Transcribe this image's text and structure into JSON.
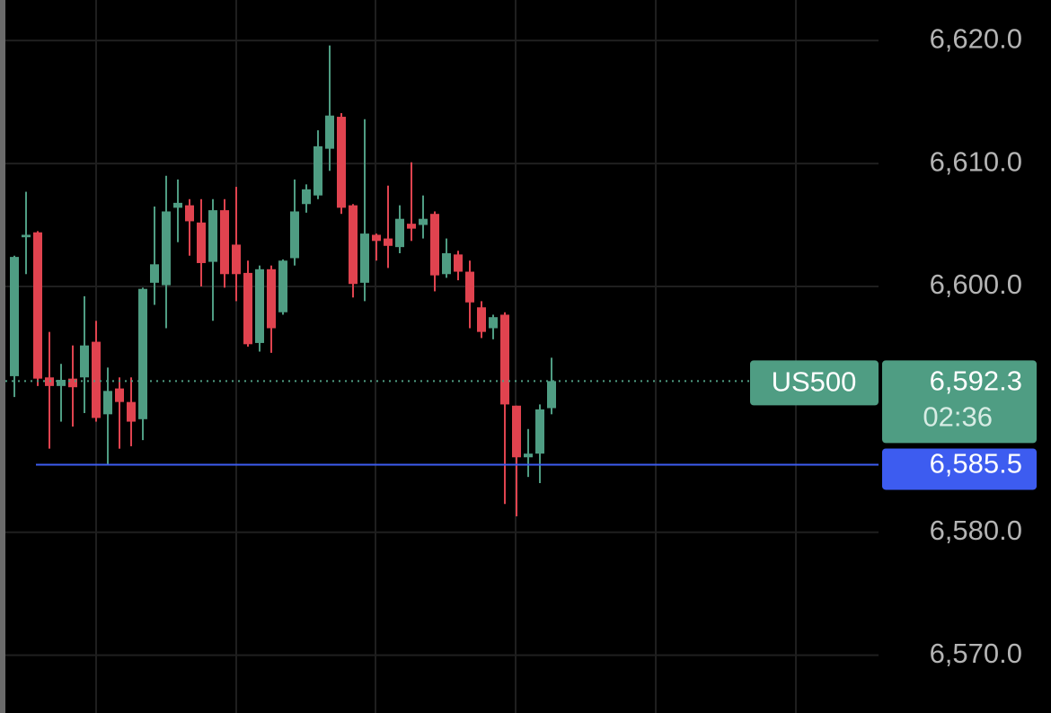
{
  "chart_data": {
    "type": "candlestick",
    "symbol": "US500",
    "open": [
      6592.7,
      6604.0,
      6604.4,
      6592.6,
      6591.9,
      6592.5,
      6592.6,
      6595.5,
      6589.6,
      6591.7,
      6590.6,
      6589.2,
      6600.3,
      6600.1,
      6606.4,
      6606.6,
      6605.2,
      6602.0,
      6606.2,
      6603.4,
      6601.1,
      6595.4,
      6601.4,
      6597.9,
      6602.3,
      6606.7,
      6607.4,
      6611.2,
      6613.8,
      6606.6,
      6600.3,
      6604.2,
      6603.9,
      6603.2,
      6605.1,
      6605.0,
      6605.9,
      6601.0,
      6602.6,
      6601.2,
      6598.3,
      6596.6,
      6597.7,
      6590.3,
      6586.1,
      6586.4,
      6590.1
    ],
    "high": [
      6602.5,
      6607.7,
      6604.5,
      6596.3,
      6593.7,
      6595.2,
      6599.2,
      6597.2,
      6593.4,
      6592.6,
      6592.6,
      6599.9,
      6606.5,
      6609.0,
      6608.7,
      6607.1,
      6607.1,
      6607.1,
      6607.1,
      6608.1,
      6602.1,
      6601.7,
      6601.7,
      6602.2,
      6608.7,
      6608.3,
      6612.7,
      6619.6,
      6614.1,
      6606.7,
      6613.6,
      6604.3,
      6608.2,
      6606.6,
      6610.1,
      6607.4,
      6606.1,
      6603.9,
      6602.9,
      6602.1,
      6598.8,
      6597.7,
      6597.9,
      6590.3,
      6588.4,
      6590.4,
      6594.2
    ],
    "low": [
      6591.0,
      6601.0,
      6591.9,
      6586.8,
      6589.0,
      6588.6,
      6589.7,
      6589.0,
      6585.5,
      6586.8,
      6587.0,
      6587.5,
      6598.5,
      6596.6,
      6603.6,
      6602.5,
      6600.0,
      6597.2,
      6599.9,
      6598.8,
      6595.1,
      6594.7,
      6594.6,
      6597.7,
      6601.7,
      6606.0,
      6607.1,
      6609.4,
      6605.9,
      6599.1,
      6598.8,
      6602.1,
      6601.5,
      6602.7,
      6603.7,
      6603.9,
      6599.6,
      6600.7,
      6600.5,
      6596.6,
      6595.8,
      6595.7,
      6582.3,
      6581.3,
      6584.5,
      6584.0,
      6589.6
    ],
    "close": [
      6602.4,
      6604.2,
      6592.5,
      6591.9,
      6592.4,
      6591.8,
      6595.2,
      6589.3,
      6591.5,
      6590.6,
      6589.0,
      6599.8,
      6601.8,
      6606.1,
      6606.8,
      6605.3,
      6601.9,
      6606.2,
      6601.0,
      6601.0,
      6595.3,
      6601.4,
      6596.6,
      6602.1,
      6606.1,
      6607.9,
      6611.4,
      6613.9,
      6606.4,
      6600.2,
      6604.3,
      6603.7,
      6603.3,
      6605.5,
      6604.7,
      6605.5,
      6600.9,
      6602.7,
      6601.2,
      6598.7,
      6596.3,
      6597.5,
      6590.4,
      6586.1,
      6586.4,
      6590.0,
      6592.3
    ],
    "up_color": "#4f9d83",
    "down_color": "#e0434f",
    "ylim": [
      6565.3,
      6623.3
    ],
    "yticks": [
      {
        "value": 6570,
        "label": "6,570.0"
      },
      {
        "value": 6580,
        "label": "6,580.0"
      },
      {
        "value": 6600,
        "label": "6,600.0"
      },
      {
        "value": 6610,
        "label": "6,610.0"
      },
      {
        "value": 6620,
        "label": "6,620.0"
      }
    ],
    "grid": true,
    "current_price": {
      "value": 6592.3,
      "label": "6,592.3"
    },
    "countdown": "02:36",
    "price_line": {
      "value": 6585.5,
      "label": "6,585.5",
      "color": "#3d5cf0"
    }
  }
}
